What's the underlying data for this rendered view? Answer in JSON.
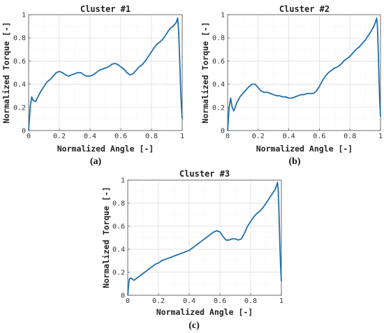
{
  "figure": {
    "panels": [
      {
        "title": "Cluster #1",
        "caption": "(a)",
        "xlabel": "Normalized Angle [-]",
        "ylabel": "Normalized Torque [-]"
      },
      {
        "title": "Cluster #2",
        "caption": "(b)",
        "xlabel": "Normalized Angle [-]",
        "ylabel": "Normalized Torque [-]"
      },
      {
        "title": "Cluster #3",
        "caption": "(c)",
        "xlabel": "Normalized Angle [-]",
        "ylabel": "Normalized Torque [-]"
      }
    ]
  },
  "chart_data": [
    {
      "type": "line",
      "title": "Cluster #1",
      "xlabel": "Normalized Angle [-]",
      "ylabel": "Normalized Torque [-]",
      "xlim": [
        0,
        1
      ],
      "ylim": [
        0,
        1
      ],
      "xticks": [
        0,
        0.2,
        0.4,
        0.6,
        0.8,
        1
      ],
      "yticks": [
        0,
        0.2,
        0.4,
        0.6,
        0.8,
        1
      ],
      "grid": true,
      "color": "#1f6fad",
      "series": [
        {
          "x": [
            0,
            0.005,
            0.012,
            0.02,
            0.03,
            0.045,
            0.06,
            0.08,
            0.1,
            0.12,
            0.14,
            0.16,
            0.18,
            0.2,
            0.22,
            0.24,
            0.26,
            0.28,
            0.3,
            0.32,
            0.34,
            0.36,
            0.38,
            0.4,
            0.42,
            0.44,
            0.46,
            0.48,
            0.5,
            0.52,
            0.54,
            0.56,
            0.58,
            0.6,
            0.62,
            0.64,
            0.66,
            0.68,
            0.7,
            0.72,
            0.74,
            0.76,
            0.78,
            0.8,
            0.82,
            0.84,
            0.86,
            0.88,
            0.9,
            0.92,
            0.94,
            0.96,
            0.97,
            0.975,
            0.98,
            0.985,
            0.99,
            0.995,
            1.0
          ],
          "y": [
            0.0,
            0.1,
            0.22,
            0.29,
            0.26,
            0.25,
            0.29,
            0.34,
            0.38,
            0.42,
            0.44,
            0.47,
            0.5,
            0.51,
            0.5,
            0.48,
            0.47,
            0.48,
            0.49,
            0.5,
            0.5,
            0.48,
            0.47,
            0.47,
            0.48,
            0.5,
            0.52,
            0.53,
            0.54,
            0.55,
            0.57,
            0.58,
            0.57,
            0.55,
            0.53,
            0.5,
            0.48,
            0.49,
            0.52,
            0.55,
            0.57,
            0.6,
            0.64,
            0.68,
            0.72,
            0.75,
            0.77,
            0.8,
            0.84,
            0.88,
            0.9,
            0.93,
            0.97,
            0.9,
            0.75,
            0.55,
            0.35,
            0.2,
            0.1
          ]
        }
      ]
    },
    {
      "type": "line",
      "title": "Cluster #2",
      "xlabel": "Normalized Angle [-]",
      "ylabel": "Normalized Torque [-]",
      "xlim": [
        0,
        1
      ],
      "ylim": [
        0,
        1
      ],
      "xticks": [
        0,
        0.2,
        0.4,
        0.6,
        0.8,
        1
      ],
      "yticks": [
        0,
        0.2,
        0.4,
        0.6,
        0.8,
        1
      ],
      "grid": true,
      "color": "#1f6fad",
      "series": [
        {
          "x": [
            0,
            0.005,
            0.01,
            0.02,
            0.03,
            0.04,
            0.05,
            0.06,
            0.08,
            0.1,
            0.12,
            0.14,
            0.16,
            0.18,
            0.2,
            0.22,
            0.24,
            0.26,
            0.28,
            0.3,
            0.32,
            0.34,
            0.36,
            0.38,
            0.4,
            0.42,
            0.44,
            0.46,
            0.48,
            0.5,
            0.52,
            0.54,
            0.56,
            0.58,
            0.6,
            0.62,
            0.64,
            0.66,
            0.68,
            0.7,
            0.72,
            0.74,
            0.76,
            0.78,
            0.8,
            0.82,
            0.84,
            0.86,
            0.88,
            0.9,
            0.92,
            0.94,
            0.96,
            0.97,
            0.975,
            0.98,
            0.985,
            0.99,
            0.995,
            1.0
          ],
          "y": [
            0.0,
            0.1,
            0.2,
            0.28,
            0.2,
            0.17,
            0.2,
            0.24,
            0.29,
            0.32,
            0.35,
            0.38,
            0.4,
            0.4,
            0.37,
            0.34,
            0.33,
            0.33,
            0.32,
            0.31,
            0.3,
            0.3,
            0.29,
            0.29,
            0.28,
            0.28,
            0.29,
            0.3,
            0.31,
            0.31,
            0.32,
            0.32,
            0.32,
            0.34,
            0.38,
            0.43,
            0.47,
            0.5,
            0.52,
            0.54,
            0.55,
            0.57,
            0.6,
            0.62,
            0.64,
            0.67,
            0.7,
            0.72,
            0.75,
            0.78,
            0.82,
            0.86,
            0.91,
            0.95,
            0.97,
            0.9,
            0.7,
            0.45,
            0.25,
            0.12
          ]
        }
      ]
    },
    {
      "type": "line",
      "title": "Cluster #3",
      "xlabel": "Normalized Angle [-]",
      "ylabel": "Normalized Torque [-]",
      "xlim": [
        0,
        1
      ],
      "ylim": [
        0,
        1
      ],
      "xticks": [
        0,
        0.2,
        0.4,
        0.6,
        0.8,
        1
      ],
      "yticks": [
        0,
        0.2,
        0.4,
        0.6,
        0.8,
        1
      ],
      "grid": true,
      "color": "#1f6fad",
      "series": [
        {
          "x": [
            0,
            0.005,
            0.01,
            0.02,
            0.04,
            0.06,
            0.08,
            0.1,
            0.12,
            0.14,
            0.16,
            0.18,
            0.2,
            0.22,
            0.24,
            0.26,
            0.28,
            0.3,
            0.32,
            0.34,
            0.36,
            0.38,
            0.4,
            0.42,
            0.44,
            0.46,
            0.48,
            0.5,
            0.52,
            0.54,
            0.56,
            0.58,
            0.6,
            0.62,
            0.64,
            0.66,
            0.68,
            0.7,
            0.72,
            0.74,
            0.76,
            0.78,
            0.8,
            0.82,
            0.84,
            0.86,
            0.88,
            0.9,
            0.92,
            0.94,
            0.96,
            0.97,
            0.975,
            0.98,
            0.985,
            0.99,
            0.995,
            1.0
          ],
          "y": [
            0.0,
            0.08,
            0.14,
            0.15,
            0.13,
            0.15,
            0.17,
            0.19,
            0.21,
            0.23,
            0.25,
            0.27,
            0.28,
            0.3,
            0.31,
            0.32,
            0.33,
            0.34,
            0.35,
            0.36,
            0.37,
            0.38,
            0.39,
            0.41,
            0.43,
            0.45,
            0.47,
            0.49,
            0.51,
            0.53,
            0.55,
            0.56,
            0.55,
            0.51,
            0.48,
            0.48,
            0.49,
            0.49,
            0.48,
            0.49,
            0.54,
            0.6,
            0.64,
            0.68,
            0.71,
            0.73,
            0.76,
            0.8,
            0.84,
            0.88,
            0.92,
            0.96,
            0.98,
            0.9,
            0.7,
            0.45,
            0.25,
            0.12
          ]
        }
      ]
    }
  ]
}
